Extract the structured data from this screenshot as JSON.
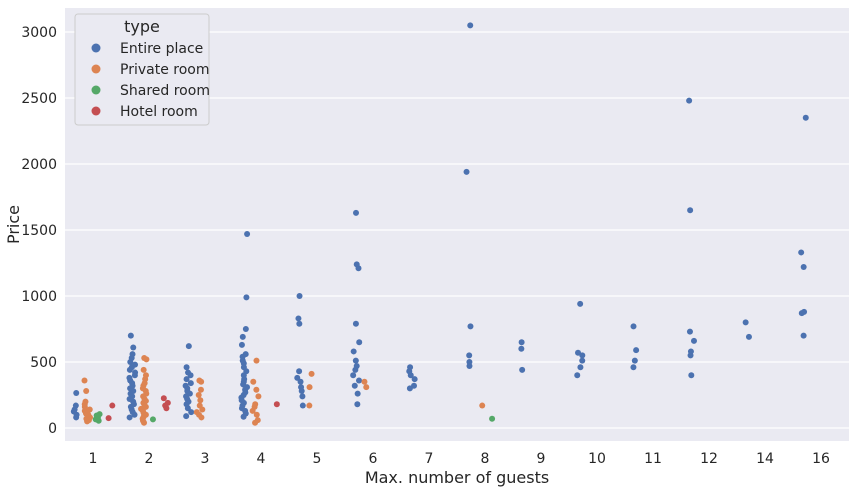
{
  "chart_data": {
    "type": "scatter",
    "subtype": "stripplot",
    "title": "",
    "xlabel": "Max. number of guests",
    "ylabel": "Price",
    "categories": [
      "1",
      "2",
      "3",
      "4",
      "5",
      "6",
      "7",
      "8",
      "9",
      "10",
      "11",
      "12",
      "14",
      "16"
    ],
    "y_ticks": [
      0,
      500,
      1000,
      1500,
      2000,
      2500,
      3000
    ],
    "ylim": [
      -100,
      3180
    ],
    "grid": true,
    "legend": {
      "title": "type",
      "position": "top-left"
    },
    "colors": {
      "Entire place": "#4c72b0",
      "Private room": "#dd8452",
      "Shared room": "#55a868",
      "Hotel room": "#c44e52"
    },
    "series": [
      {
        "name": "Entire place",
        "points": {
          "1": [
            80,
            100,
            125,
            140,
            170,
            265
          ],
          "2": [
            80,
            100,
            120,
            140,
            160,
            180,
            200,
            220,
            240,
            260,
            280,
            300,
            320,
            340,
            360,
            380,
            400,
            420,
            440,
            460,
            480,
            500,
            530,
            560,
            610,
            700
          ],
          "3": [
            90,
            120,
            150,
            180,
            200,
            220,
            240,
            260,
            280,
            300,
            320,
            340,
            370,
            400,
            420,
            460,
            620
          ],
          "4": [
            85,
            110,
            130,
            150,
            170,
            190,
            210,
            230,
            250,
            270,
            290,
            310,
            330,
            350,
            370,
            400,
            430,
            460,
            490,
            510,
            540,
            560,
            630,
            690,
            750,
            990,
            1470
          ],
          "5": [
            170,
            240,
            280,
            310,
            350,
            380,
            430,
            790,
            830,
            1000
          ],
          "6": [
            180,
            260,
            320,
            360,
            400,
            440,
            470,
            510,
            580,
            650,
            790,
            1210,
            1240,
            1630
          ],
          "7": [
            300,
            320,
            370,
            400,
            430,
            460
          ],
          "8": [
            470,
            500,
            550,
            770,
            1940,
            3050
          ],
          "9": [
            440,
            600,
            650
          ],
          "10": [
            400,
            460,
            510,
            550,
            570,
            940
          ],
          "11": [
            460,
            510,
            590,
            770
          ],
          "12": [
            400,
            550,
            580,
            660,
            730,
            1650,
            2480
          ],
          "14": [
            690,
            800
          ],
          "16": [
            700,
            870,
            880,
            1220,
            1330,
            2350
          ]
        }
      },
      {
        "name": "Private room",
        "points": {
          "1": [
            50,
            60,
            70,
            80,
            90,
            100,
            110,
            120,
            130,
            140,
            160,
            180,
            200,
            280,
            360
          ],
          "2": [
            40,
            55,
            70,
            85,
            100,
            115,
            130,
            145,
            160,
            175,
            190,
            205,
            220,
            240,
            260,
            280,
            300,
            320,
            340,
            370,
            400,
            440,
            520,
            530
          ],
          "3": [
            80,
            100,
            120,
            140,
            170,
            210,
            250,
            290,
            350,
            360
          ],
          "4": [
            40,
            60,
            100,
            130,
            160,
            180,
            240,
            290,
            350,
            510
          ],
          "5": [
            170,
            310,
            410
          ],
          "6": [
            310,
            350
          ],
          "8": [
            170
          ]
        }
      },
      {
        "name": "Shared room",
        "points": {
          "1": [
            55,
            65,
            80,
            95,
            105
          ],
          "2": [
            65
          ],
          "8": [
            70
          ]
        }
      },
      {
        "name": "Hotel room",
        "points": {
          "1": [
            75,
            170
          ],
          "2": [
            150,
            170,
            190,
            225
          ],
          "4": [
            180
          ]
        }
      }
    ]
  }
}
